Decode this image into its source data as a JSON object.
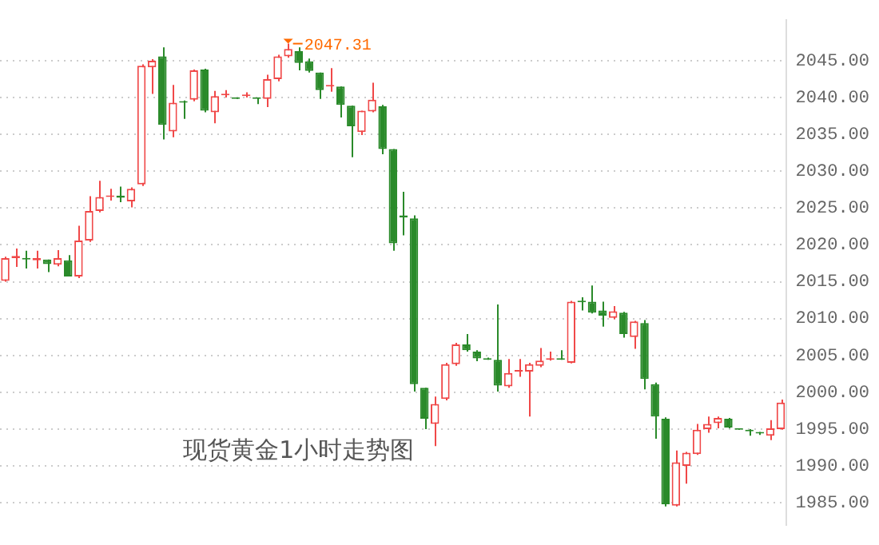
{
  "chart_data": {
    "type": "candlestick",
    "title": "现货黄金1小时走势图",
    "categories": [
      null,
      null,
      null,
      null,
      null,
      null,
      null,
      null,
      null,
      null,
      null,
      null,
      null,
      null,
      null,
      null,
      null,
      null,
      null,
      null,
      null,
      null,
      null,
      null,
      null,
      null,
      null,
      null,
      null,
      null,
      null,
      null,
      null,
      null,
      null,
      null,
      null,
      null,
      null,
      null,
      null,
      null,
      null,
      null,
      null,
      null,
      null,
      null,
      null,
      null,
      null,
      null,
      null,
      null,
      null,
      null,
      null,
      null,
      null,
      null,
      null,
      null,
      null,
      null,
      null,
      null,
      null,
      null,
      null,
      null,
      null,
      null,
      null,
      null,
      null
    ],
    "ohlc": [
      [
        2015.1,
        2018.4,
        2015.0,
        2018.2
      ],
      [
        2018.2,
        2019.5,
        2017.0,
        2018.5
      ],
      [
        2018.2,
        2019.2,
        2016.8,
        2018.0
      ],
      [
        2017.9,
        2019.2,
        2016.8,
        2018.2
      ],
      [
        2018.0,
        2018.0,
        2016.3,
        2017.4
      ],
      [
        2017.3,
        2019.3,
        2017.1,
        2018.2
      ],
      [
        2017.9,
        2018.6,
        2015.7,
        2015.7
      ],
      [
        2015.7,
        2022.6,
        2015.5,
        2020.6
      ],
      [
        2020.6,
        2026.6,
        2020.4,
        2024.6
      ],
      [
        2024.6,
        2028.7,
        2024.4,
        2026.5
      ],
      [
        2026.5,
        2027.6,
        2026.0,
        2026.6
      ],
      [
        2026.7,
        2027.9,
        2025.8,
        2026.4
      ],
      [
        2025.9,
        2027.8,
        2025.1,
        2027.6
      ],
      [
        2028.2,
        2044.5,
        2028.0,
        2044.3
      ],
      [
        2044.1,
        2045.2,
        2040.5,
        2045.0
      ],
      [
        2045.6,
        2046.8,
        2034.3,
        2036.3
      ],
      [
        2035.4,
        2041.7,
        2034.6,
        2039.3
      ],
      [
        2039.5,
        2039.6,
        2037.1,
        2039.3
      ],
      [
        2039.7,
        2043.8,
        2039.5,
        2043.7
      ],
      [
        2043.8,
        2043.9,
        2038.0,
        2038.2
      ],
      [
        2038.0,
        2040.9,
        2036.5,
        2040.2
      ],
      [
        2040.3,
        2041.0,
        2040.0,
        2040.5
      ],
      [
        2040.0,
        2040.0,
        2039.8,
        2039.8
      ],
      [
        2040.2,
        2040.7,
        2040.0,
        2040.4
      ],
      [
        2040.0,
        2040.0,
        2039.1,
        2039.8
      ],
      [
        2039.8,
        2043.1,
        2038.7,
        2042.5
      ],
      [
        2042.5,
        2045.8,
        2042.2,
        2045.6
      ],
      [
        2045.6,
        2047.31,
        2045.4,
        2046.6
      ],
      [
        2046.3,
        2046.8,
        2043.7,
        2044.7
      ],
      [
        2044.9,
        2045.3,
        2043.4,
        2043.6
      ],
      [
        2043.4,
        2043.4,
        2039.8,
        2041.0
      ],
      [
        2041.5,
        2044.0,
        2040.8,
        2041.7
      ],
      [
        2041.5,
        2041.5,
        2037.3,
        2039.0
      ],
      [
        2038.9,
        2038.9,
        2031.9,
        2036.1
      ],
      [
        2035.3,
        2038.2,
        2034.9,
        2038.2
      ],
      [
        2038.1,
        2042.0,
        2038.0,
        2039.7
      ],
      [
        2038.8,
        2039.0,
        2032.3,
        2033.0
      ],
      [
        2033.0,
        2033.0,
        2019.2,
        2020.2
      ],
      [
        2024.0,
        2027.2,
        2021.3,
        2023.7
      ],
      [
        2023.6,
        2024.0,
        2000.1,
        2001.1
      ],
      [
        2000.6,
        2000.6,
        1995.0,
        1996.4
      ],
      [
        1995.7,
        1999.4,
        1992.7,
        1998.4
      ],
      [
        1999.1,
        2004.0,
        1998.9,
        2003.8
      ],
      [
        2003.8,
        2006.7,
        2003.6,
        2006.5
      ],
      [
        2006.5,
        2007.9,
        2005.5,
        2005.7
      ],
      [
        2005.5,
        2005.7,
        2004.2,
        2004.6
      ],
      [
        2004.6,
        2004.7,
        2004.4,
        2004.4
      ],
      [
        2004.4,
        2011.9,
        2000.1,
        2000.9
      ],
      [
        2000.8,
        2004.5,
        2000.6,
        2002.6
      ],
      [
        2002.8,
        2004.5,
        2002.1,
        2003.0
      ],
      [
        2002.8,
        2004.0,
        1996.7,
        2003.8
      ],
      [
        2003.6,
        2006.0,
        2003.4,
        2004.3
      ],
      [
        2004.4,
        2005.5,
        2004.3,
        2004.6
      ],
      [
        2004.6,
        2005.7,
        2004.4,
        2004.4
      ],
      [
        2004.0,
        2012.4,
        2003.9,
        2012.3
      ],
      [
        2012.4,
        2012.9,
        2011.1,
        2012.2
      ],
      [
        2012.3,
        2014.5,
        2010.7,
        2010.8
      ],
      [
        2011.1,
        2012.3,
        2008.9,
        2010.4
      ],
      [
        2010.1,
        2011.7,
        2009.9,
        2011.0
      ],
      [
        2010.8,
        2010.9,
        2007.4,
        2007.9
      ],
      [
        2007.5,
        2009.7,
        2005.9,
        2009.6
      ],
      [
        2009.4,
        2009.8,
        2000.4,
        2001.8
      ],
      [
        2001.1,
        2001.3,
        1993.7,
        1996.7
      ],
      [
        1996.4,
        1996.6,
        1984.5,
        1984.8
      ],
      [
        1984.6,
        1992.1,
        1984.5,
        1990.5
      ],
      [
        1990.0,
        1991.9,
        1987.6,
        1991.8
      ],
      [
        1991.6,
        1995.7,
        1991.5,
        1994.9
      ],
      [
        1995.0,
        1996.7,
        1994.5,
        1995.7
      ],
      [
        1995.8,
        1996.7,
        1995.1,
        1996.5
      ],
      [
        1996.4,
        1996.5,
        1995.1,
        1995.2
      ],
      [
        1995.1,
        1995.1,
        1994.9,
        1994.9
      ],
      [
        1994.9,
        1995.0,
        1994.1,
        1994.7
      ],
      [
        1994.6,
        1994.6,
        1994.2,
        1994.4
      ],
      [
        1994.1,
        1996.2,
        1993.5,
        1995.1
      ],
      [
        1995.0,
        1999.0,
        1994.9,
        1998.6
      ]
    ],
    "colors": [
      "#f04848",
      "#f04848",
      "#2a8a2a",
      "#f04848",
      "#2a8a2a",
      "#f04848",
      "#2a8a2a",
      "#f04848",
      "#f04848",
      "#f04848",
      "#f04848",
      "#2a8a2a",
      "#f04848",
      "#f04848",
      "#f04848",
      "#2a8a2a",
      "#f04848",
      "#2a8a2a",
      "#f04848",
      "#2a8a2a",
      "#f04848",
      "#f04848",
      "#2a8a2a",
      "#f04848",
      "#2a8a2a",
      "#f04848",
      "#f04848",
      "#f04848",
      "#2a8a2a",
      "#2a8a2a",
      "#2a8a2a",
      "#f04848",
      "#2a8a2a",
      "#2a8a2a",
      "#f04848",
      "#f04848",
      "#2a8a2a",
      "#2a8a2a",
      "#2a8a2a",
      "#2a8a2a",
      "#2a8a2a",
      "#f04848",
      "#f04848",
      "#f04848",
      "#2a8a2a",
      "#2a8a2a",
      "#2a8a2a",
      "#2a8a2a",
      "#f04848",
      "#f04848",
      "#f04848",
      "#f04848",
      "#f04848",
      "#2a8a2a",
      "#f04848",
      "#2a8a2a",
      "#2a8a2a",
      "#2a8a2a",
      "#f04848",
      "#2a8a2a",
      "#f04848",
      "#2a8a2a",
      "#2a8a2a",
      "#2a8a2a",
      "#f04848",
      "#f04848",
      "#f04848",
      "#f04848",
      "#f04848",
      "#2a8a2a",
      "#2a8a2a",
      "#2a8a2a",
      "#2a8a2a",
      "#f04848",
      "#f04848"
    ],
    "ylim": [
      1982,
      2050.5
    ],
    "yticks": [
      {
        "value": 1985,
        "label": "1985.00"
      },
      {
        "value": 1990,
        "label": "1990.00"
      },
      {
        "value": 1995,
        "label": "1995.00"
      },
      {
        "value": 2000,
        "label": "2000.00"
      },
      {
        "value": 2005,
        "label": "2005.00"
      },
      {
        "value": 2010,
        "label": "2010.00"
      },
      {
        "value": 2015,
        "label": "2015.00"
      },
      {
        "value": 2020,
        "label": "2020.00"
      },
      {
        "value": 2025,
        "label": "2025.00"
      },
      {
        "value": 2030,
        "label": "2030.00"
      },
      {
        "value": 2035,
        "label": "2035.00"
      },
      {
        "value": 2040,
        "label": "2040.00"
      },
      {
        "value": 2045,
        "label": "2045.00"
      }
    ],
    "annotations": [
      "2047.31"
    ],
    "grid": "y",
    "tick_labels": "y",
    "legend": false
  }
}
